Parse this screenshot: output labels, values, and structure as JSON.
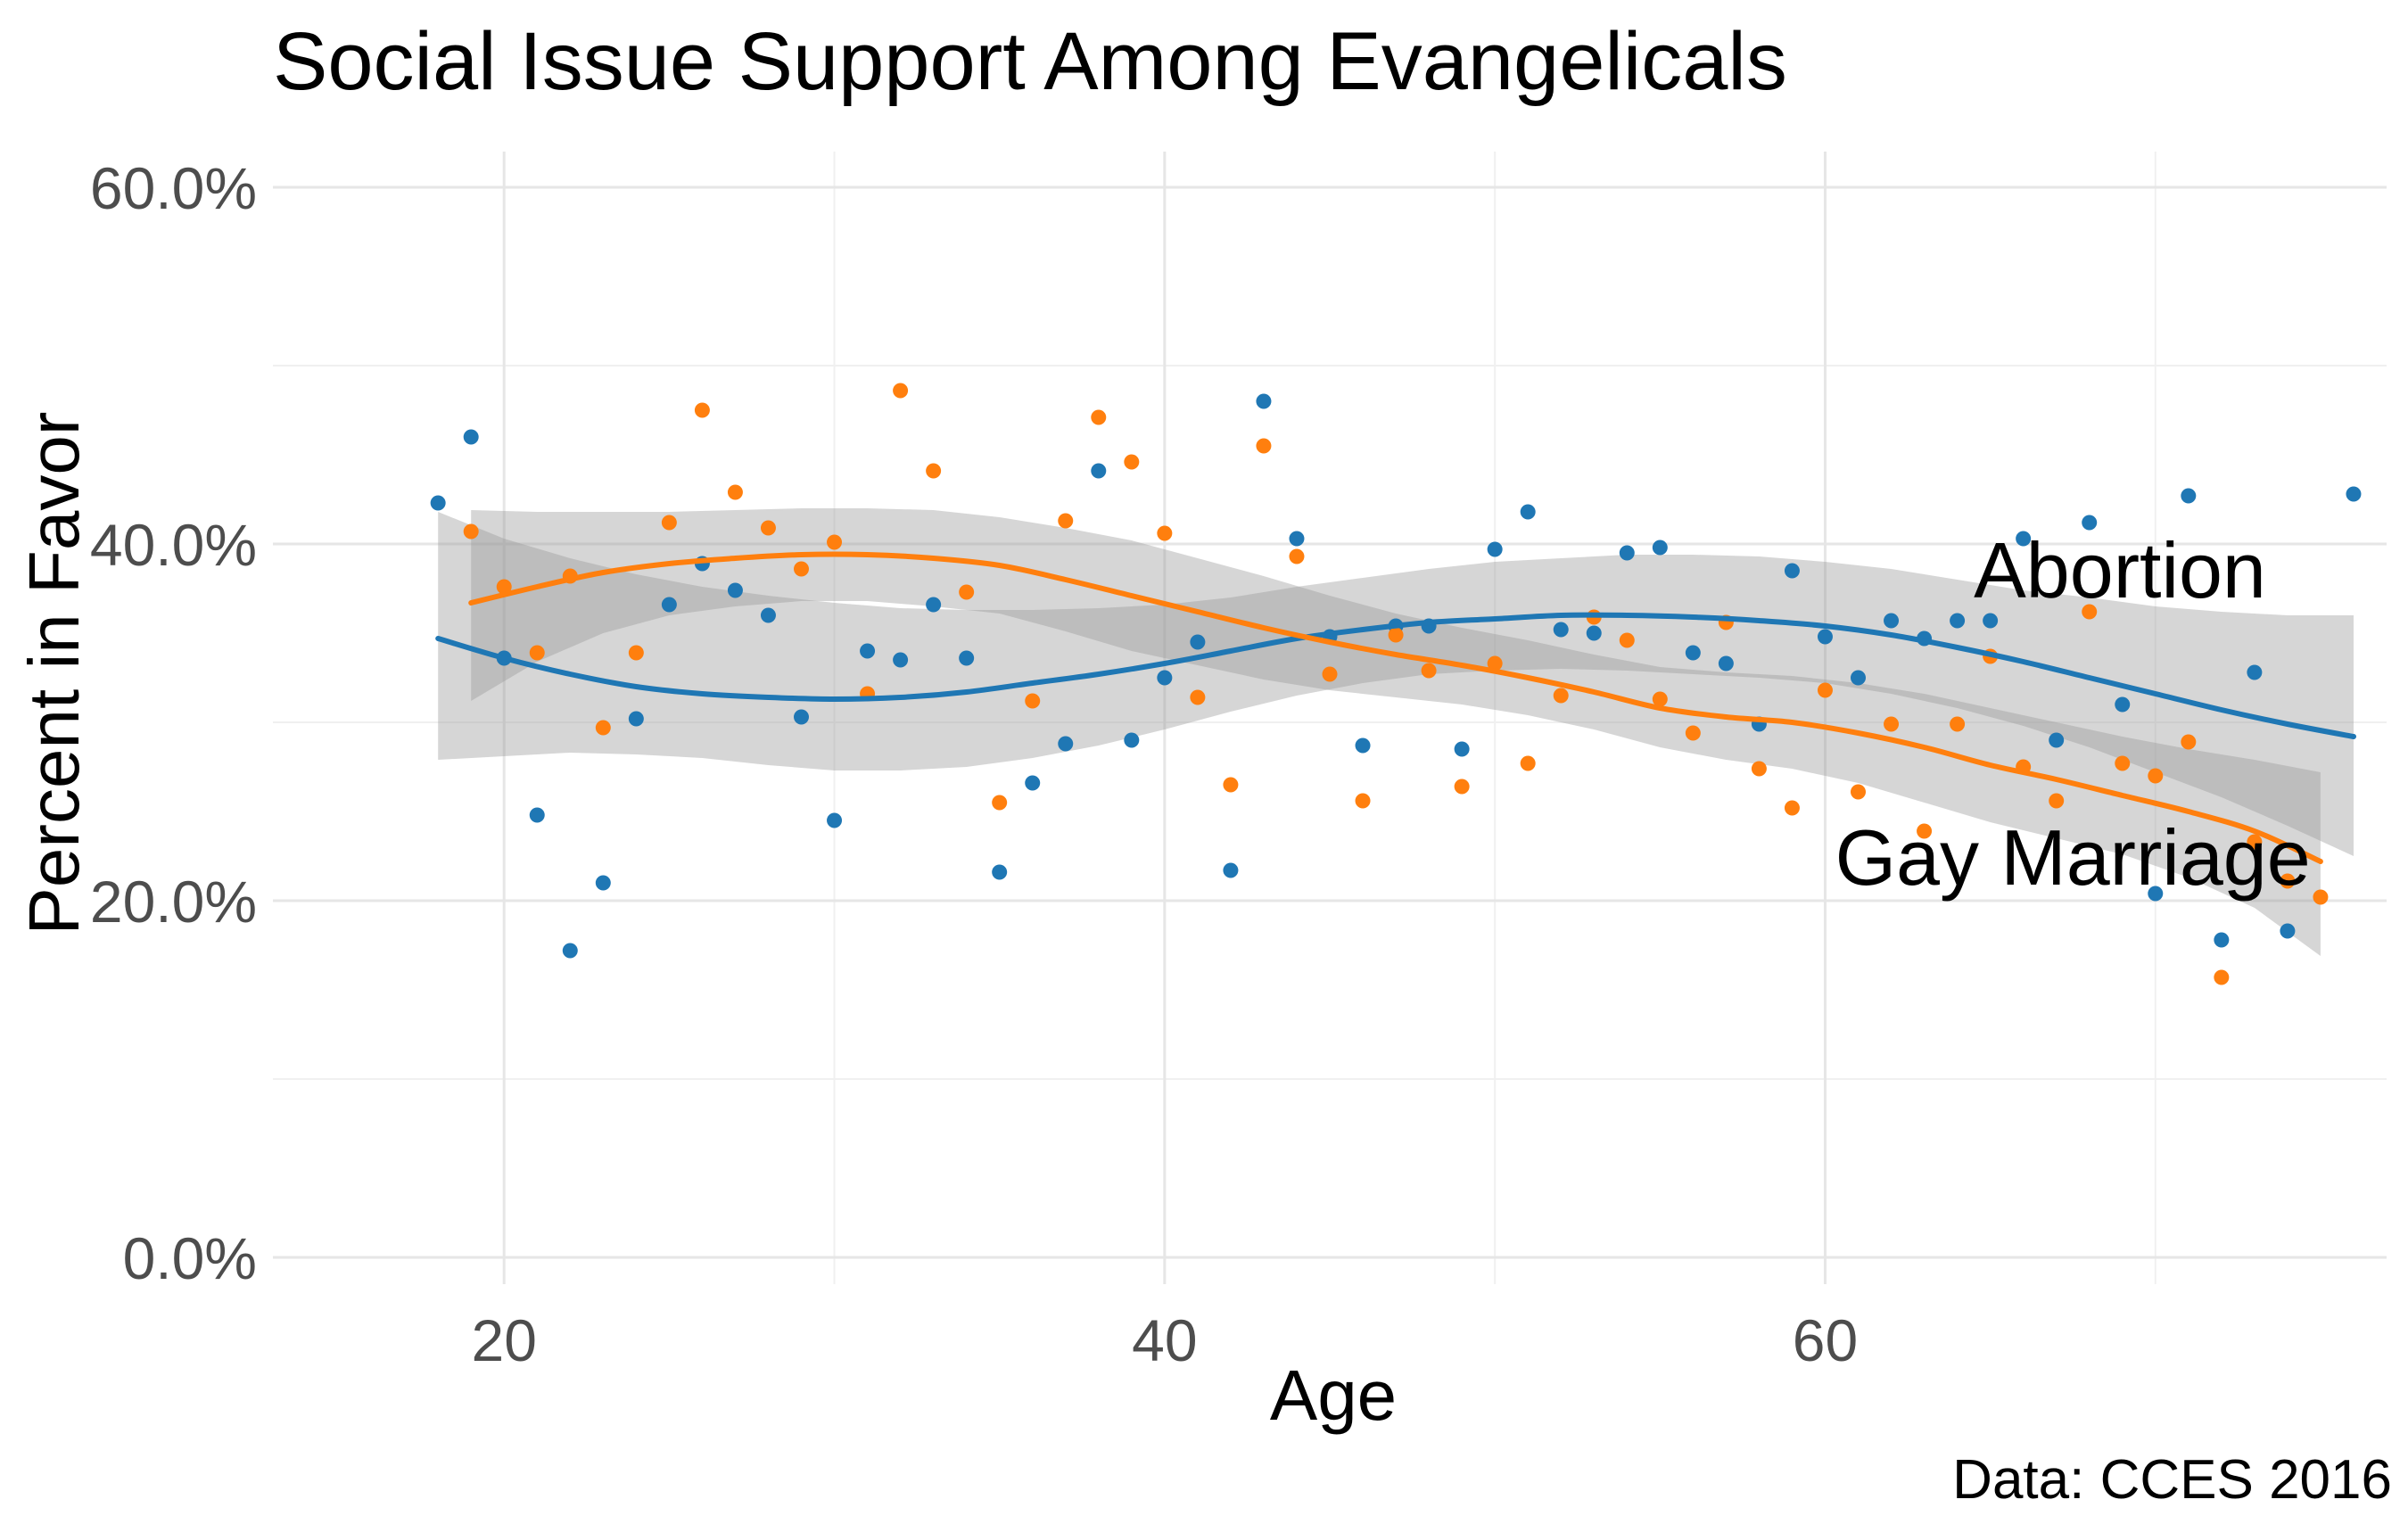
{
  "chart_data": {
    "type": "scatter",
    "title": "Social Issue Support Among Evangelicals",
    "xlabel": "Age",
    "ylabel": "Percent in Favor",
    "caption": "Data: CCES 2016",
    "xlim": [
      13,
      77
    ],
    "ylim": [
      -1.5,
      62
    ],
    "x_ticks": [
      20,
      40,
      60
    ],
    "x_minor": [
      30,
      50,
      70
    ],
    "y_ticks": [
      0,
      20,
      40,
      60
    ],
    "y_tick_labels": [
      "0.0%",
      "20.0%",
      "40.0%",
      "60.0%"
    ],
    "y_minor": [
      10,
      30,
      50
    ],
    "grid": true,
    "colors": {
      "abortion": "#1f77b4",
      "gay_marriage": "#ff7f0e",
      "band": "#999999"
    },
    "series": [
      {
        "name": "Abortion",
        "color": "#1f77b4",
        "label": "Abortion",
        "label_anchor": [
          64.5,
          37.0
        ],
        "points": [
          [
            18,
            42.3
          ],
          [
            19,
            46.0
          ],
          [
            20,
            33.6
          ],
          [
            21,
            24.8
          ],
          [
            22,
            17.2
          ],
          [
            23,
            21.0
          ],
          [
            24,
            30.2
          ],
          [
            25,
            36.6
          ],
          [
            26,
            38.9
          ],
          [
            27,
            37.4
          ],
          [
            28,
            36.0
          ],
          [
            29,
            30.3
          ],
          [
            30,
            24.5
          ],
          [
            31,
            34.0
          ],
          [
            32,
            33.5
          ],
          [
            33,
            36.6
          ],
          [
            34,
            33.6
          ],
          [
            35,
            21.6
          ],
          [
            36,
            26.6
          ],
          [
            37,
            28.8
          ],
          [
            38,
            44.1
          ],
          [
            39,
            29.0
          ],
          [
            40,
            32.5
          ],
          [
            41,
            34.5
          ],
          [
            42,
            21.7
          ],
          [
            43,
            48.0
          ],
          [
            44,
            40.3
          ],
          [
            45,
            34.8
          ],
          [
            46,
            28.7
          ],
          [
            47,
            35.4
          ],
          [
            48,
            35.4
          ],
          [
            49,
            28.5
          ],
          [
            50,
            39.7
          ],
          [
            51,
            41.8
          ],
          [
            52,
            35.2
          ],
          [
            53,
            35.0
          ],
          [
            54,
            39.5
          ],
          [
            55,
            39.8
          ],
          [
            56,
            33.9
          ],
          [
            57,
            33.3
          ],
          [
            58,
            29.9
          ],
          [
            59,
            38.5
          ],
          [
            60,
            34.8
          ],
          [
            61,
            32.5
          ],
          [
            62,
            35.7
          ],
          [
            63,
            34.7
          ],
          [
            64,
            35.7
          ],
          [
            65,
            35.7
          ],
          [
            66,
            40.3
          ],
          [
            67,
            29.0
          ],
          [
            68,
            41.2
          ],
          [
            69,
            31.0
          ],
          [
            70,
            20.4
          ],
          [
            71,
            42.7
          ],
          [
            72,
            17.8
          ],
          [
            73,
            32.8
          ],
          [
            74,
            18.3
          ],
          [
            76,
            42.8
          ]
        ],
        "fit": [
          [
            18,
            34.7
          ],
          [
            20,
            33.6
          ],
          [
            22,
            32.7
          ],
          [
            24,
            32.0
          ],
          [
            26,
            31.6
          ],
          [
            28,
            31.4
          ],
          [
            30,
            31.3
          ],
          [
            32,
            31.4
          ],
          [
            34,
            31.7
          ],
          [
            36,
            32.2
          ],
          [
            38,
            32.7
          ],
          [
            40,
            33.3
          ],
          [
            42,
            34.0
          ],
          [
            44,
            34.7
          ],
          [
            46,
            35.2
          ],
          [
            48,
            35.6
          ],
          [
            50,
            35.8
          ],
          [
            52,
            36.0
          ],
          [
            54,
            36.0
          ],
          [
            56,
            35.9
          ],
          [
            58,
            35.7
          ],
          [
            60,
            35.4
          ],
          [
            62,
            34.9
          ],
          [
            64,
            34.2
          ],
          [
            66,
            33.4
          ],
          [
            68,
            32.5
          ],
          [
            70,
            31.6
          ],
          [
            72,
            30.7
          ],
          [
            74,
            29.9
          ],
          [
            76,
            29.2
          ]
        ],
        "ci_upper": [
          [
            18,
            41.8
          ],
          [
            20,
            40.3
          ],
          [
            22,
            39.2
          ],
          [
            24,
            38.3
          ],
          [
            26,
            37.6
          ],
          [
            28,
            37.1
          ],
          [
            30,
            36.7
          ],
          [
            32,
            36.4
          ],
          [
            34,
            36.3
          ],
          [
            36,
            36.3
          ],
          [
            38,
            36.4
          ],
          [
            40,
            36.6
          ],
          [
            42,
            37.0
          ],
          [
            44,
            37.6
          ],
          [
            46,
            38.1
          ],
          [
            48,
            38.6
          ],
          [
            50,
            39.0
          ],
          [
            52,
            39.2
          ],
          [
            54,
            39.4
          ],
          [
            56,
            39.4
          ],
          [
            58,
            39.3
          ],
          [
            60,
            39.0
          ],
          [
            62,
            38.6
          ],
          [
            64,
            38.0
          ],
          [
            66,
            37.4
          ],
          [
            68,
            37.0
          ],
          [
            70,
            36.5
          ],
          [
            72,
            36.2
          ],
          [
            74,
            36.0
          ],
          [
            76,
            36.0
          ]
        ],
        "ci_lower": [
          [
            18,
            27.9
          ],
          [
            20,
            28.1
          ],
          [
            22,
            28.3
          ],
          [
            24,
            28.2
          ],
          [
            26,
            28.0
          ],
          [
            28,
            27.6
          ],
          [
            30,
            27.3
          ],
          [
            32,
            27.3
          ],
          [
            34,
            27.5
          ],
          [
            36,
            28.0
          ],
          [
            38,
            28.7
          ],
          [
            40,
            29.6
          ],
          [
            42,
            30.6
          ],
          [
            44,
            31.5
          ],
          [
            46,
            32.2
          ],
          [
            48,
            32.7
          ],
          [
            50,
            32.9
          ],
          [
            52,
            33.0
          ],
          [
            54,
            32.9
          ],
          [
            56,
            32.7
          ],
          [
            58,
            32.5
          ],
          [
            60,
            32.2
          ],
          [
            62,
            31.6
          ],
          [
            64,
            30.8
          ],
          [
            66,
            29.8
          ],
          [
            68,
            28.6
          ],
          [
            70,
            27.2
          ],
          [
            72,
            25.8
          ],
          [
            74,
            24.2
          ],
          [
            76,
            22.5
          ]
        ]
      },
      {
        "name": "Gay Marriage",
        "color": "#ff7f0e",
        "label": "Gay Marriage",
        "label_anchor": [
          60.3,
          20.9
        ],
        "points": [
          [
            19,
            40.7
          ],
          [
            20,
            37.6
          ],
          [
            21,
            33.9
          ],
          [
            22,
            38.2
          ],
          [
            23,
            29.7
          ],
          [
            24,
            33.9
          ],
          [
            25,
            41.2
          ],
          [
            26,
            47.5
          ],
          [
            27,
            42.9
          ],
          [
            28,
            40.9
          ],
          [
            29,
            38.6
          ],
          [
            30,
            40.1
          ],
          [
            31,
            31.6
          ],
          [
            32,
            48.6
          ],
          [
            33,
            44.1
          ],
          [
            34,
            37.3
          ],
          [
            35,
            25.5
          ],
          [
            36,
            31.2
          ],
          [
            37,
            41.3
          ],
          [
            38,
            47.1
          ],
          [
            39,
            44.6
          ],
          [
            40,
            40.6
          ],
          [
            41,
            31.4
          ],
          [
            42,
            26.5
          ],
          [
            43,
            45.5
          ],
          [
            44,
            39.3
          ],
          [
            45,
            32.7
          ],
          [
            46,
            25.6
          ],
          [
            47,
            34.9
          ],
          [
            48,
            32.9
          ],
          [
            49,
            26.4
          ],
          [
            50,
            33.3
          ],
          [
            51,
            27.7
          ],
          [
            52,
            31.5
          ],
          [
            53,
            35.9
          ],
          [
            54,
            34.6
          ],
          [
            55,
            31.3
          ],
          [
            56,
            29.4
          ],
          [
            57,
            35.6
          ],
          [
            58,
            27.4
          ],
          [
            59,
            25.2
          ],
          [
            60,
            31.8
          ],
          [
            61,
            26.1
          ],
          [
            62,
            29.9
          ],
          [
            63,
            23.9
          ],
          [
            64,
            29.9
          ],
          [
            65,
            33.7
          ],
          [
            66,
            27.5
          ],
          [
            67,
            25.6
          ],
          [
            68,
            36.2
          ],
          [
            69,
            27.7
          ],
          [
            70,
            27.0
          ],
          [
            71,
            28.9
          ],
          [
            72,
            15.7
          ],
          [
            73,
            23.3
          ],
          [
            74,
            21.1
          ],
          [
            75,
            20.2
          ]
        ],
        "fit": [
          [
            19,
            36.7
          ],
          [
            21,
            37.6
          ],
          [
            23,
            38.4
          ],
          [
            25,
            38.9
          ],
          [
            27,
            39.2
          ],
          [
            29,
            39.4
          ],
          [
            31,
            39.4
          ],
          [
            33,
            39.2
          ],
          [
            35,
            38.8
          ],
          [
            37,
            38.0
          ],
          [
            39,
            37.1
          ],
          [
            41,
            36.2
          ],
          [
            43,
            35.3
          ],
          [
            45,
            34.5
          ],
          [
            47,
            33.8
          ],
          [
            49,
            33.2
          ],
          [
            51,
            32.5
          ],
          [
            53,
            31.7
          ],
          [
            55,
            30.8
          ],
          [
            57,
            30.3
          ],
          [
            59,
            30.0
          ],
          [
            61,
            29.4
          ],
          [
            63,
            28.6
          ],
          [
            65,
            27.6
          ],
          [
            67,
            26.8
          ],
          [
            69,
            25.9
          ],
          [
            71,
            25.0
          ],
          [
            73,
            23.9
          ],
          [
            75,
            22.2
          ]
        ],
        "ci_upper": [
          [
            19,
            41.9
          ],
          [
            21,
            41.8
          ],
          [
            23,
            41.8
          ],
          [
            25,
            41.8
          ],
          [
            27,
            41.9
          ],
          [
            29,
            42.0
          ],
          [
            31,
            42.0
          ],
          [
            33,
            41.9
          ],
          [
            35,
            41.5
          ],
          [
            37,
            40.9
          ],
          [
            39,
            40.2
          ],
          [
            41,
            39.2
          ],
          [
            43,
            38.2
          ],
          [
            45,
            37.1
          ],
          [
            47,
            36.1
          ],
          [
            49,
            35.3
          ],
          [
            51,
            34.6
          ],
          [
            53,
            33.8
          ],
          [
            55,
            33.1
          ],
          [
            57,
            32.8
          ],
          [
            59,
            32.6
          ],
          [
            61,
            32.2
          ],
          [
            63,
            31.6
          ],
          [
            65,
            30.8
          ],
          [
            67,
            30.0
          ],
          [
            69,
            29.2
          ],
          [
            71,
            28.5
          ],
          [
            73,
            27.9
          ],
          [
            75,
            27.2
          ]
        ],
        "ci_lower": [
          [
            19,
            31.2
          ],
          [
            21,
            33.4
          ],
          [
            23,
            35.0
          ],
          [
            25,
            36.0
          ],
          [
            27,
            36.5
          ],
          [
            29,
            36.8
          ],
          [
            31,
            36.8
          ],
          [
            33,
            36.5
          ],
          [
            35,
            36.1
          ],
          [
            37,
            35.1
          ],
          [
            39,
            34.0
          ],
          [
            41,
            33.2
          ],
          [
            43,
            32.4
          ],
          [
            45,
            31.8
          ],
          [
            47,
            31.4
          ],
          [
            49,
            31.0
          ],
          [
            51,
            30.4
          ],
          [
            53,
            29.6
          ],
          [
            55,
            28.6
          ],
          [
            57,
            27.9
          ],
          [
            59,
            27.4
          ],
          [
            61,
            26.6
          ],
          [
            63,
            25.5
          ],
          [
            65,
            24.4
          ],
          [
            67,
            23.5
          ],
          [
            69,
            22.6
          ],
          [
            71,
            21.3
          ],
          [
            73,
            19.6
          ],
          [
            75,
            16.9
          ]
        ]
      }
    ]
  }
}
